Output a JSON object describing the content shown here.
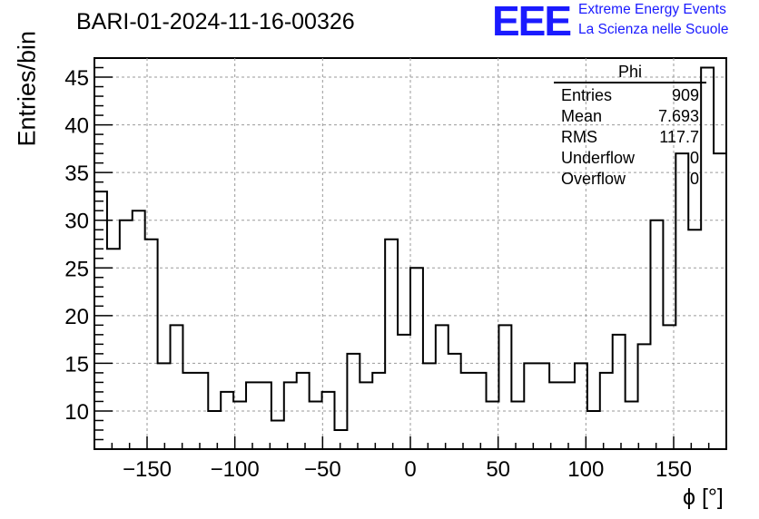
{
  "header": {
    "title": "BARI-01-2024-11-16-00326",
    "logo_text": "EEE",
    "logo_line1": "Extreme Energy Events",
    "logo_line2": "La Scienza nelle Scuole"
  },
  "stats_box": {
    "name": "Phi",
    "rows": [
      {
        "label": "Entries",
        "value": "909"
      },
      {
        "label": "Mean",
        "value": "7.693"
      },
      {
        "label": "RMS",
        "value": "117.7"
      },
      {
        "label": "Underflow",
        "value": "0"
      },
      {
        "label": "Overflow",
        "value": "0"
      }
    ]
  },
  "chart_data": {
    "type": "bar",
    "title": "BARI-01-2024-11-16-00326",
    "xlabel": "ϕ [°]",
    "ylabel": "Entries/bin",
    "xlim": [
      -180,
      180
    ],
    "ylim": [
      6,
      47
    ],
    "bin_width": 7.2,
    "grid": true,
    "legend": "top-right",
    "xticks": [
      -150,
      -100,
      -50,
      0,
      50,
      100,
      150
    ],
    "xtick_labels": [
      "−150",
      "−100",
      "−50",
      "0",
      "50",
      "100",
      "150"
    ],
    "yticks": [
      10,
      15,
      20,
      25,
      30,
      35,
      40,
      45
    ],
    "values": [
      33,
      27,
      30,
      31,
      28,
      15,
      19,
      14,
      14,
      10,
      12,
      11,
      13,
      13,
      9,
      13,
      14,
      11,
      12,
      8,
      16,
      13,
      14,
      28,
      18,
      25,
      15,
      19,
      16,
      14,
      14,
      11,
      19,
      11,
      15,
      15,
      13,
      13,
      15,
      10,
      14,
      18,
      11,
      17,
      30,
      19,
      37,
      29,
      46,
      37
    ]
  },
  "colors": {
    "logo": "#1a1aff",
    "line": "#000000",
    "grid": "#9a9a9a"
  }
}
